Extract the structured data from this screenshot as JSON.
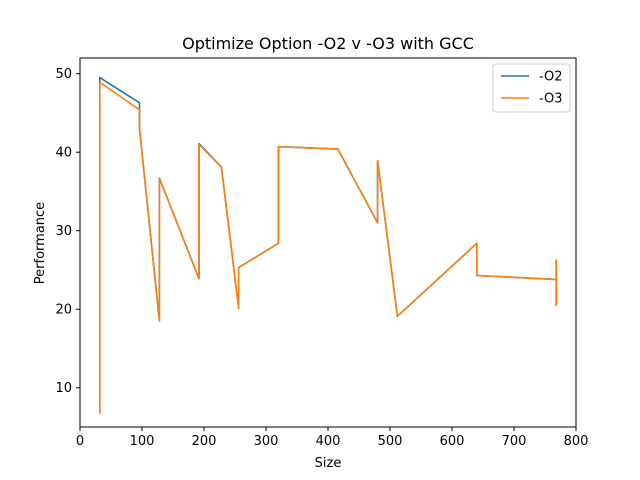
{
  "chart_data": {
    "type": "line",
    "title": "Optimize Option -O2 v -O3 with GCC",
    "xlabel": "Size",
    "ylabel": "Performance",
    "xlim": [
      0,
      800
    ],
    "ylim": [
      5,
      52
    ],
    "xticks": [
      "0",
      "100",
      "200",
      "300",
      "400",
      "500",
      "600",
      "700",
      "800"
    ],
    "yticks": [
      "10",
      "20",
      "30",
      "40",
      "50"
    ],
    "grid": false,
    "legend_position": "top-right",
    "series": [
      {
        "name": "-O2",
        "color": "#1f77b4",
        "x": [
          32,
          32,
          96,
          96,
          128,
          128,
          192,
          192,
          228,
          256,
          256,
          320,
          320,
          416,
          480,
          480,
          512,
          640,
          640,
          768,
          768,
          768
        ],
        "y": [
          6.7,
          49.5,
          46.3,
          43.0,
          18.5,
          36.7,
          23.9,
          41.1,
          38.1,
          20.1,
          25.3,
          28.4,
          40.7,
          40.4,
          31.0,
          38.9,
          19.1,
          28.4,
          24.3,
          23.8,
          20.5,
          26.3
        ]
      },
      {
        "name": "-O3",
        "color": "#ff7f0e",
        "x": [
          32,
          32,
          96,
          96,
          128,
          128,
          192,
          192,
          228,
          256,
          256,
          320,
          320,
          416,
          480,
          480,
          512,
          640,
          640,
          768,
          768,
          768
        ],
        "y": [
          6.7,
          48.9,
          45.4,
          43.0,
          18.5,
          36.7,
          23.9,
          41.0,
          38.1,
          20.1,
          25.3,
          28.4,
          40.7,
          40.4,
          31.0,
          38.9,
          19.1,
          28.4,
          24.3,
          23.8,
          20.5,
          26.3
        ]
      }
    ]
  }
}
